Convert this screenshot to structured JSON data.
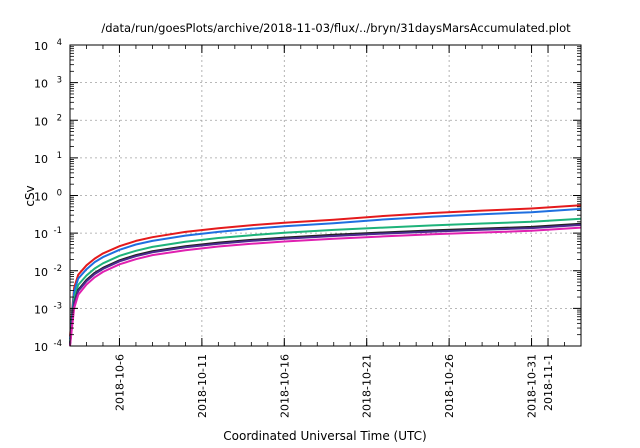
{
  "chart_data": {
    "type": "line",
    "title": "/data/run/goesPlots/archive/2018-11-03/flux/../bryn/31daysMarsAccumulated.plot",
    "xlabel": "Coordinated Universal Time (UTC)",
    "ylabel": "cSv",
    "y_scale": "log",
    "ylim": [
      0.0001,
      10000
    ],
    "xlim": [
      "2018-10-03 00:00",
      "2018-11-03 00:00"
    ],
    "grid": true,
    "legend": "none",
    "x_tick_labels": [
      "2018-10-6",
      "2018-10-11",
      "2018-10-16",
      "2018-10-21",
      "2018-10-26",
      "2018-10-31",
      "2018-11-1"
    ],
    "x_tick_dates": [
      "2018-10-06",
      "2018-10-11",
      "2018-10-16",
      "2018-10-21",
      "2018-10-26",
      "2018-10-31",
      "2018-11-01"
    ],
    "y_tick_labels": [
      {
        "value": 0.0001,
        "base": "10",
        "exp": "-4"
      },
      {
        "value": 0.001,
        "base": "10",
        "exp": "-3"
      },
      {
        "value": 0.01,
        "base": "10",
        "exp": "-2"
      },
      {
        "value": 0.1,
        "base": "10",
        "exp": "-1"
      },
      {
        "value": 1,
        "base": "10",
        "exp": "0"
      },
      {
        "value": 10,
        "base": "10",
        "exp": "1"
      },
      {
        "value": 100,
        "base": "10",
        "exp": "2"
      },
      {
        "value": 1000,
        "base": "10",
        "exp": "3"
      },
      {
        "value": 10000,
        "base": "10",
        "exp": "4"
      }
    ],
    "x": [
      "2018-10-03 00:00",
      "2018-10-03 06:00",
      "2018-10-03 12:00",
      "2018-10-04 00:00",
      "2018-10-04 12:00",
      "2018-10-05 00:00",
      "2018-10-06 00:00",
      "2018-10-07 00:00",
      "2018-10-08 00:00",
      "2018-10-10 00:00",
      "2018-10-12 00:00",
      "2018-10-14 00:00",
      "2018-10-16 00:00",
      "2018-10-19 00:00",
      "2018-10-22 00:00",
      "2018-10-25 00:00",
      "2018-10-28 00:00",
      "2018-10-31 00:00",
      "2018-11-03 00:00"
    ],
    "series": [
      {
        "color": "#e41a1c",
        "values": [
          0.00018,
          0.0035,
          0.0078,
          0.014,
          0.021,
          0.029,
          0.045,
          0.062,
          0.078,
          0.108,
          0.135,
          0.162,
          0.189,
          0.228,
          0.286,
          0.342,
          0.398,
          0.45,
          0.55
        ]
      },
      {
        "color": "#1f6fe0",
        "values": [
          0.00015,
          0.0028,
          0.0062,
          0.011,
          0.017,
          0.023,
          0.036,
          0.05,
          0.062,
          0.086,
          0.108,
          0.13,
          0.152,
          0.184,
          0.23,
          0.275,
          0.318,
          0.36,
          0.44
        ]
      },
      {
        "color": "#1db37a",
        "values": [
          0.00012,
          0.0019,
          0.0042,
          0.0075,
          0.0115,
          0.0158,
          0.025,
          0.034,
          0.043,
          0.059,
          0.074,
          0.088,
          0.102,
          0.122,
          0.14,
          0.16,
          0.18,
          0.2,
          0.24
        ]
      },
      {
        "color": "#222222",
        "values": [
          0.00011,
          0.0014,
          0.0031,
          0.0057,
          0.0088,
          0.012,
          0.019,
          0.026,
          0.033,
          0.045,
          0.056,
          0.066,
          0.076,
          0.09,
          0.104,
          0.118,
          0.132,
          0.146,
          0.178
        ]
      },
      {
        "color": "#4b2a8f",
        "values": [
          0.000105,
          0.0013,
          0.0029,
          0.0053,
          0.0082,
          0.0112,
          0.0178,
          0.0243,
          0.031,
          0.042,
          0.052,
          0.062,
          0.071,
          0.084,
          0.097,
          0.11,
          0.123,
          0.136,
          0.165
        ]
      },
      {
        "color": "#e020b0",
        "values": [
          0.0001,
          0.001,
          0.0023,
          0.0043,
          0.0067,
          0.0093,
          0.0148,
          0.0203,
          0.026,
          0.035,
          0.044,
          0.052,
          0.06,
          0.071,
          0.082,
          0.093,
          0.104,
          0.115,
          0.14
        ]
      }
    ]
  }
}
